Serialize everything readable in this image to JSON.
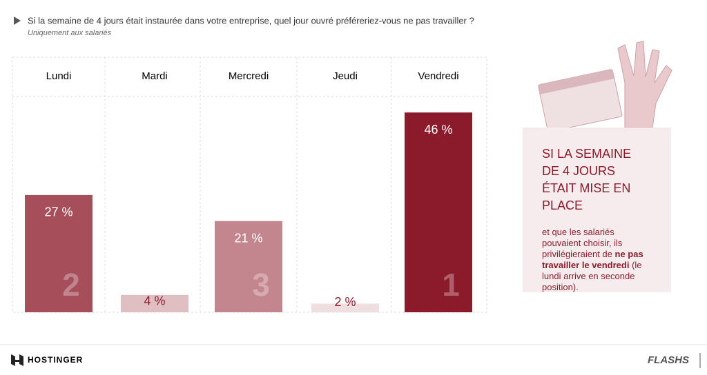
{
  "header": {
    "title": "Si la semaine de 4 jours était instaurée dans votre entreprise, quel jour ouvré préféreriez-vous ne pas travailler ?",
    "subtitle": "Uniquement aux salariés"
  },
  "chart_data": {
    "type": "bar",
    "categories": [
      "Lundi",
      "Mardi",
      "Mercredi",
      "Jeudi",
      "Vendredi"
    ],
    "values": [
      27,
      4,
      21,
      2,
      46
    ],
    "value_labels": [
      "27 %",
      "4 %",
      "21 %",
      "2 %",
      "46 %"
    ],
    "ranks": [
      "2",
      null,
      "3",
      null,
      "1"
    ],
    "colors": [
      "#a64f5b",
      "#e0bfc3",
      "#c4868e",
      "#f0dfe1",
      "#8b1a2b"
    ]
  },
  "sidebar": {
    "heading": "SI LA SEMAINE DE 4 JOURS ÉTAIT MISE EN PLACE",
    "text": [
      "et que les salariés pouvaient choisir, ils privilégieraient de ",
      "ne pas travailler le vendredi",
      " (le lundi arrive en seconde position)."
    ]
  },
  "footer": {
    "brand": "HOSTINGER",
    "logo": "FLASHS"
  }
}
